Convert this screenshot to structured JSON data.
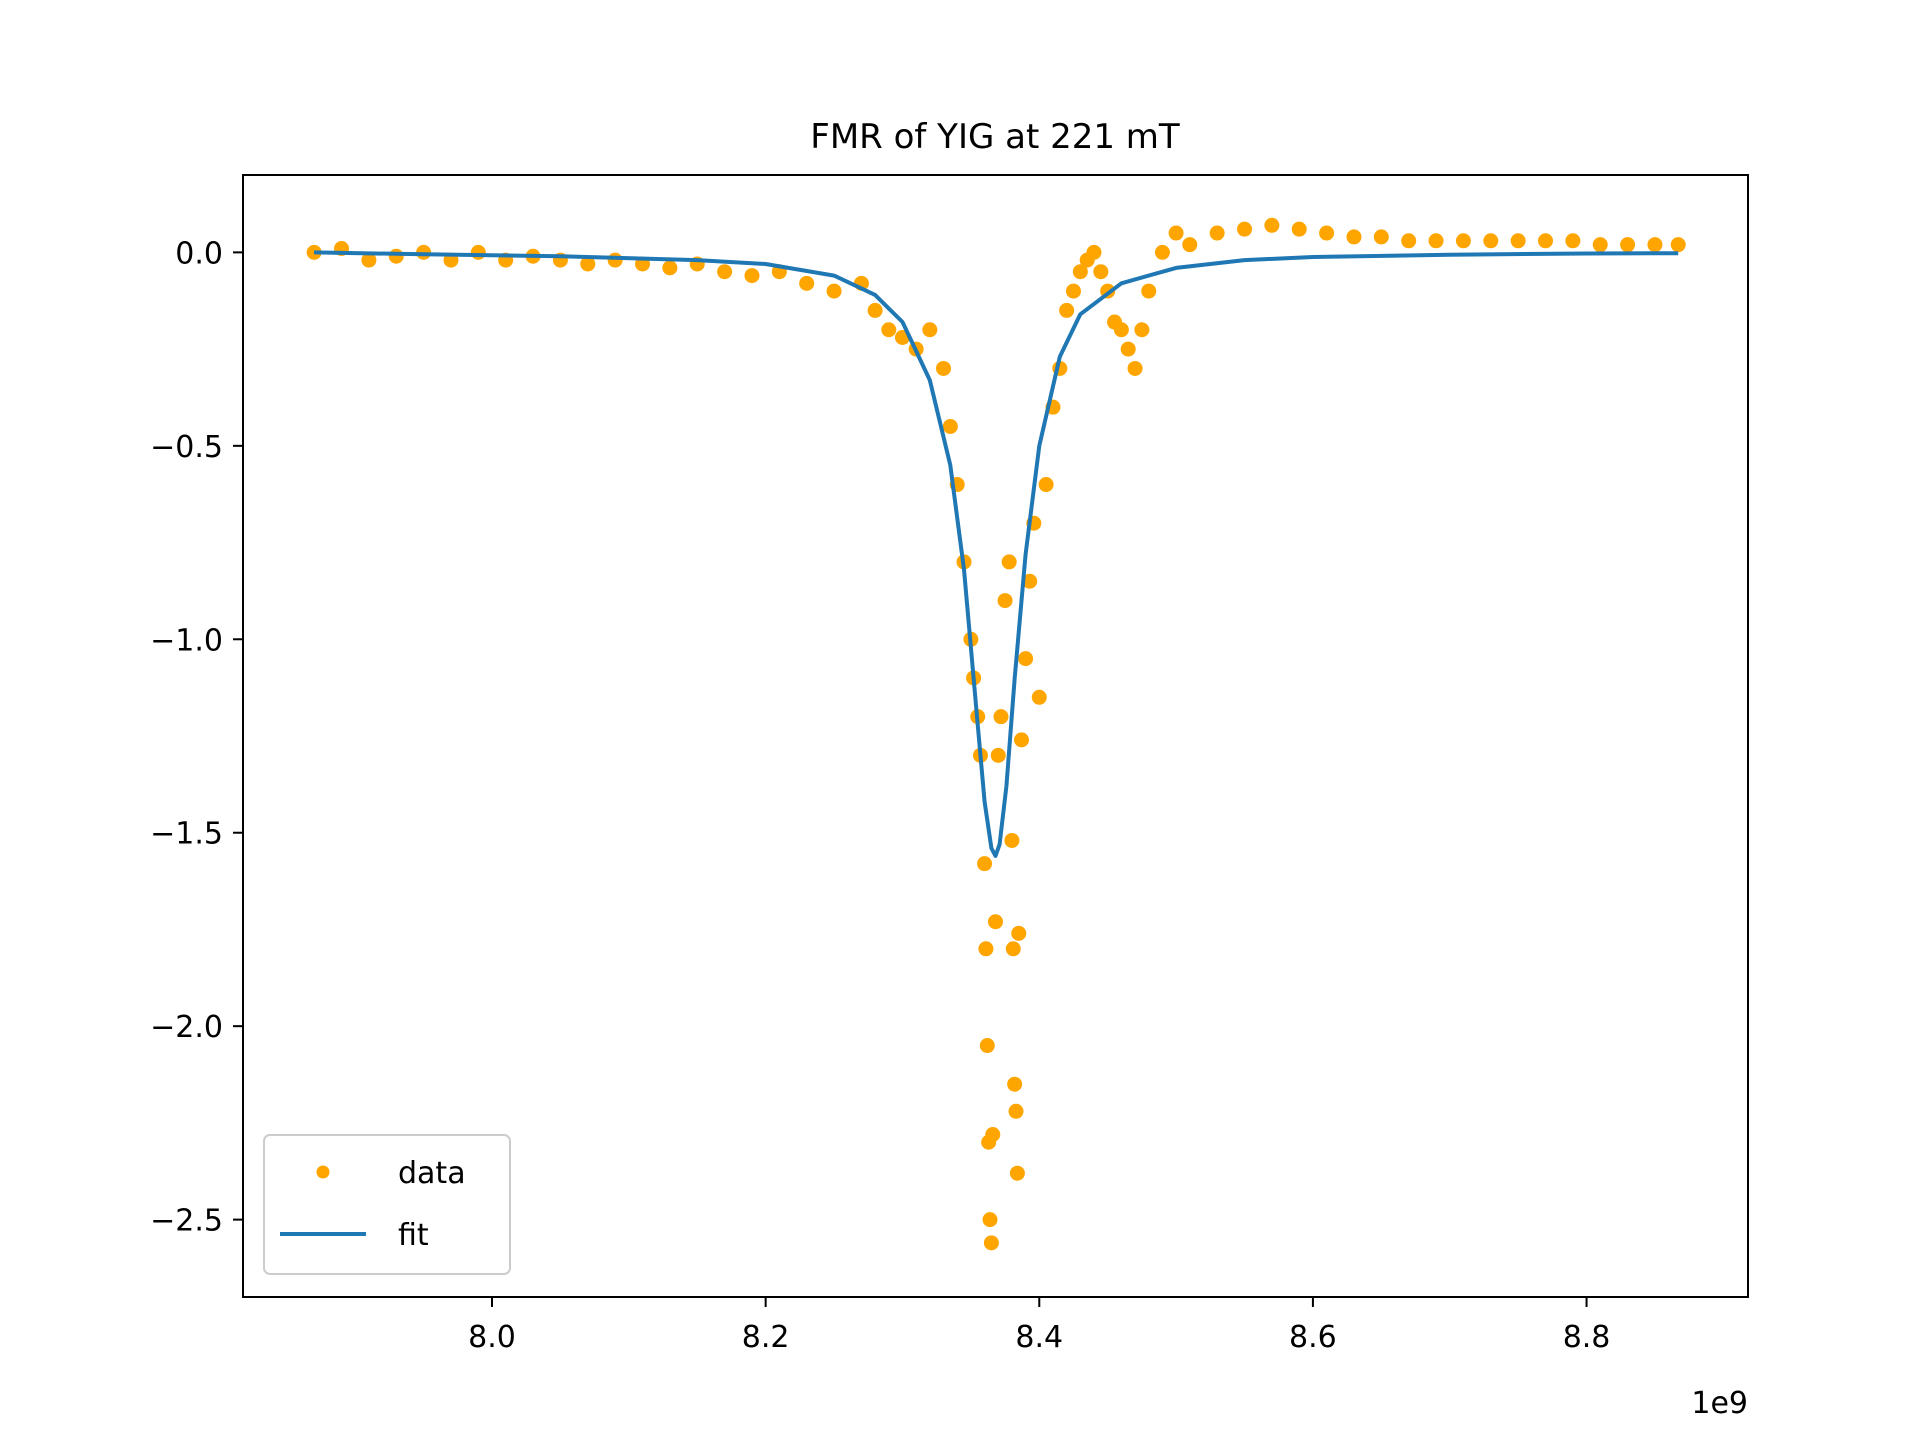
{
  "chart_data": {
    "type": "scatter",
    "title": "FMR of YIG at 221 mT",
    "xlabel": "",
    "ylabel": "",
    "x_offset_label": "1e9",
    "xlim": [
      7818000000.0,
      8918000000.0
    ],
    "ylim": [
      -2.7,
      0.2
    ],
    "x_ticks": [
      8000000000.0,
      8200000000.0,
      8400000000.0,
      8600000000.0,
      8800000000.0
    ],
    "x_tick_labels": [
      "8.0",
      "8.2",
      "8.4",
      "8.6",
      "8.8"
    ],
    "y_ticks": [
      0.0,
      -0.5,
      -1.0,
      -1.5,
      -2.0,
      -2.5
    ],
    "y_tick_labels": [
      "0.0",
      "−0.5",
      "−1.0",
      "−1.5",
      "−2.0",
      "−2.5"
    ],
    "grid": false,
    "legend_position": "lower-left",
    "series": [
      {
        "name": "data",
        "kind": "scatter",
        "color": "#ffa500",
        "x": [
          7870000000.0,
          7890000000.0,
          7910000000.0,
          7930000000.0,
          7950000000.0,
          7970000000.0,
          7990000000.0,
          8010000000.0,
          8030000000.0,
          8050000000.0,
          8070000000.0,
          8090000000.0,
          8110000000.0,
          8130000000.0,
          8150000000.0,
          8170000000.0,
          8190000000.0,
          8210000000.0,
          8230000000.0,
          8250000000.0,
          8270000000.0,
          8280000000.0,
          8290000000.0,
          8300000000.0,
          8310000000.0,
          8320000000.0,
          8330000000.0,
          8335000000.0,
          8340000000.0,
          8345000000.0,
          8350000000.0,
          8352000000.0,
          8355000000.0,
          8357000000.0,
          8360000000.0,
          8361000000.0,
          8362000000.0,
          8363000000.0,
          8364000000.0,
          8365000000.0,
          8366000000.0,
          8368000000.0,
          8370000000.0,
          8372000000.0,
          8375000000.0,
          8378000000.0,
          8380000000.0,
          8381000000.0,
          8382000000.0,
          8383000000.0,
          8384000000.0,
          8385000000.0,
          8387000000.0,
          8390000000.0,
          8393000000.0,
          8396000000.0,
          8400000000.0,
          8405000000.0,
          8410000000.0,
          8415000000.0,
          8420000000.0,
          8425000000.0,
          8430000000.0,
          8435000000.0,
          8440000000.0,
          8445000000.0,
          8450000000.0,
          8455000000.0,
          8460000000.0,
          8465000000.0,
          8470000000.0,
          8475000000.0,
          8480000000.0,
          8490000000.0,
          8500000000.0,
          8510000000.0,
          8530000000.0,
          8550000000.0,
          8570000000.0,
          8590000000.0,
          8610000000.0,
          8630000000.0,
          8650000000.0,
          8670000000.0,
          8690000000.0,
          8710000000.0,
          8730000000.0,
          8750000000.0,
          8770000000.0,
          8790000000.0,
          8810000000.0,
          8830000000.0,
          8850000000.0,
          8867000000.0
        ],
        "y": [
          0.0,
          0.01,
          -0.02,
          -0.01,
          0.0,
          -0.02,
          0.0,
          -0.02,
          -0.01,
          -0.02,
          -0.03,
          -0.02,
          -0.03,
          -0.04,
          -0.03,
          -0.05,
          -0.06,
          -0.05,
          -0.08,
          -0.1,
          -0.08,
          -0.15,
          -0.2,
          -0.22,
          -0.25,
          -0.2,
          -0.3,
          -0.45,
          -0.6,
          -0.8,
          -1.0,
          -1.1,
          -1.2,
          -1.3,
          -1.58,
          -1.8,
          -2.05,
          -2.3,
          -2.5,
          -2.56,
          -2.28,
          -1.73,
          -1.3,
          -1.2,
          -0.9,
          -0.8,
          -1.52,
          -1.8,
          -2.15,
          -2.22,
          -2.38,
          -1.76,
          -1.26,
          -1.05,
          -0.85,
          -0.7,
          -1.15,
          -0.6,
          -0.4,
          -0.3,
          -0.15,
          -0.1,
          -0.05,
          -0.02,
          0.0,
          -0.05,
          -0.1,
          -0.18,
          -0.2,
          -0.25,
          -0.3,
          -0.2,
          -0.1,
          0.0,
          0.05,
          0.02,
          0.05,
          0.06,
          0.07,
          0.06,
          0.05,
          0.04,
          0.04,
          0.03,
          0.03,
          0.03,
          0.03,
          0.03,
          0.03,
          0.03,
          0.02,
          0.02,
          0.02,
          0.02
        ]
      },
      {
        "name": "fit",
        "kind": "line",
        "color": "#1f77b4",
        "x": [
          7870000000.0,
          7950000000.0,
          8050000000.0,
          8150000000.0,
          8200000000.0,
          8250000000.0,
          8280000000.0,
          8300000000.0,
          8320000000.0,
          8335000000.0,
          8345000000.0,
          8355000000.0,
          8360000000.0,
          8365000000.0,
          8368000000.0,
          8371000000.0,
          8376000000.0,
          8382000000.0,
          8390000000.0,
          8400000000.0,
          8415000000.0,
          8430000000.0,
          8460000000.0,
          8500000000.0,
          8550000000.0,
          8600000000.0,
          8700000000.0,
          8800000000.0,
          8867000000.0
        ],
        "y": [
          0.0,
          -0.005,
          -0.01,
          -0.02,
          -0.03,
          -0.06,
          -0.11,
          -0.18,
          -0.33,
          -0.55,
          -0.82,
          -1.22,
          -1.42,
          -1.54,
          -1.56,
          -1.53,
          -1.38,
          -1.1,
          -0.78,
          -0.5,
          -0.27,
          -0.16,
          -0.08,
          -0.04,
          -0.02,
          -0.012,
          -0.006,
          -0.003,
          -0.002
        ]
      }
    ]
  }
}
